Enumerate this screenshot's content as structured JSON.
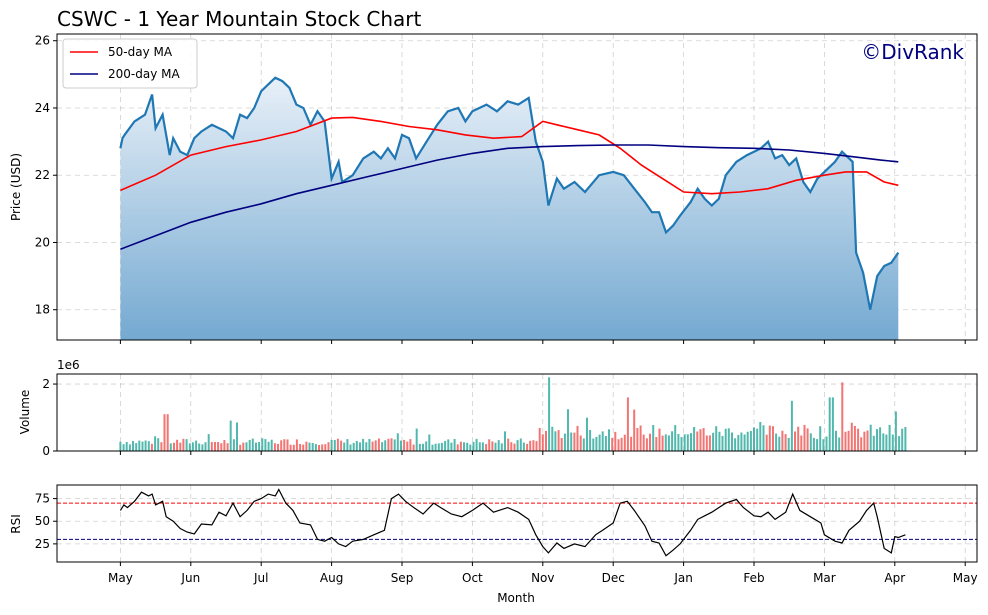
{
  "chart_data": {
    "type": "line",
    "title": "CSWC - 1 Year Mountain Stock Chart",
    "watermark": "©DivRank",
    "xlabel": "Month",
    "x_ticks": [
      "May",
      "Jun",
      "Jul",
      "Aug",
      "Sep",
      "Oct",
      "Nov",
      "Dec",
      "Jan",
      "Feb",
      "Mar",
      "Apr",
      "May"
    ],
    "price_panel": {
      "ylabel": "Price (USD)",
      "ylim": [
        17.1,
        26.2
      ],
      "yticks": [
        "18",
        "20",
        "22",
        "24",
        "26"
      ],
      "grid": true,
      "legend_position": "top-left",
      "legend": [
        "50-day MA",
        "200-day MA"
      ],
      "price": [
        [
          0,
          22.8
        ],
        [
          0.03,
          23.1
        ],
        [
          0.06,
          23.2
        ],
        [
          0.2,
          23.6
        ],
        [
          0.35,
          23.8
        ],
        [
          0.45,
          24.4
        ],
        [
          0.5,
          23.4
        ],
        [
          0.6,
          23.8
        ],
        [
          0.7,
          22.6
        ],
        [
          0.75,
          23.1
        ],
        [
          0.85,
          22.7
        ],
        [
          0.95,
          22.6
        ],
        [
          1.05,
          23.1
        ],
        [
          1.15,
          23.3
        ],
        [
          1.3,
          23.5
        ],
        [
          1.5,
          23.3
        ],
        [
          1.6,
          23.1
        ],
        [
          1.7,
          23.8
        ],
        [
          1.8,
          23.7
        ],
        [
          1.9,
          24.0
        ],
        [
          2.0,
          24.5
        ],
        [
          2.1,
          24.7
        ],
        [
          2.2,
          24.9
        ],
        [
          2.3,
          24.8
        ],
        [
          2.4,
          24.6
        ],
        [
          2.5,
          24.1
        ],
        [
          2.6,
          24.0
        ],
        [
          2.7,
          23.5
        ],
        [
          2.8,
          23.9
        ],
        [
          2.9,
          23.6
        ],
        [
          3.0,
          21.9
        ],
        [
          3.1,
          22.4
        ],
        [
          3.15,
          21.8
        ],
        [
          3.3,
          22.0
        ],
        [
          3.45,
          22.5
        ],
        [
          3.6,
          22.7
        ],
        [
          3.7,
          22.5
        ],
        [
          3.8,
          22.8
        ],
        [
          3.9,
          22.5
        ],
        [
          4.0,
          23.2
        ],
        [
          4.1,
          23.1
        ],
        [
          4.2,
          22.5
        ],
        [
          4.35,
          23.0
        ],
        [
          4.5,
          23.5
        ],
        [
          4.65,
          23.9
        ],
        [
          4.8,
          24.0
        ],
        [
          4.9,
          23.6
        ],
        [
          5.0,
          23.9
        ],
        [
          5.2,
          24.1
        ],
        [
          5.35,
          23.9
        ],
        [
          5.5,
          24.2
        ],
        [
          5.65,
          24.1
        ],
        [
          5.8,
          24.3
        ],
        [
          5.9,
          23.0
        ],
        [
          6.0,
          22.4
        ],
        [
          6.08,
          21.1
        ],
        [
          6.2,
          21.9
        ],
        [
          6.3,
          21.6
        ],
        [
          6.45,
          21.8
        ],
        [
          6.6,
          21.5
        ],
        [
          6.8,
          22.0
        ],
        [
          7.0,
          22.1
        ],
        [
          7.15,
          22.0
        ],
        [
          7.3,
          21.6
        ],
        [
          7.45,
          21.2
        ],
        [
          7.55,
          20.9
        ],
        [
          7.65,
          20.9
        ],
        [
          7.75,
          20.3
        ],
        [
          7.85,
          20.5
        ],
        [
          7.95,
          20.8
        ],
        [
          8.1,
          21.2
        ],
        [
          8.2,
          21.6
        ],
        [
          8.3,
          21.3
        ],
        [
          8.4,
          21.1
        ],
        [
          8.5,
          21.3
        ],
        [
          8.6,
          22.0
        ],
        [
          8.75,
          22.4
        ],
        [
          8.9,
          22.6
        ],
        [
          9.0,
          22.7
        ],
        [
          9.1,
          22.8
        ],
        [
          9.2,
          23.0
        ],
        [
          9.3,
          22.5
        ],
        [
          9.4,
          22.6
        ],
        [
          9.5,
          22.3
        ],
        [
          9.6,
          22.5
        ],
        [
          9.7,
          21.8
        ],
        [
          9.8,
          21.5
        ],
        [
          9.9,
          21.9
        ],
        [
          10.0,
          22.1
        ],
        [
          10.15,
          22.4
        ],
        [
          10.25,
          22.7
        ],
        [
          10.4,
          22.4
        ],
        [
          10.45,
          19.7
        ],
        [
          10.55,
          19.1
        ],
        [
          10.65,
          18.0
        ],
        [
          10.75,
          19.0
        ],
        [
          10.85,
          19.3
        ],
        [
          10.95,
          19.4
        ],
        [
          11.05,
          19.7
        ]
      ],
      "ma50": [
        [
          0,
          21.55
        ],
        [
          0.5,
          22.0
        ],
        [
          1.0,
          22.6
        ],
        [
          1.5,
          22.85
        ],
        [
          2.0,
          23.05
        ],
        [
          2.5,
          23.3
        ],
        [
          3.0,
          23.7
        ],
        [
          3.3,
          23.72
        ],
        [
          3.7,
          23.6
        ],
        [
          4.1,
          23.45
        ],
        [
          4.5,
          23.35
        ],
        [
          4.9,
          23.2
        ],
        [
          5.3,
          23.1
        ],
        [
          5.7,
          23.15
        ],
        [
          6.0,
          23.6
        ],
        [
          6.2,
          23.5
        ],
        [
          6.5,
          23.35
        ],
        [
          6.8,
          23.2
        ],
        [
          7.1,
          22.8
        ],
        [
          7.4,
          22.3
        ],
        [
          7.7,
          21.9
        ],
        [
          8.0,
          21.5
        ],
        [
          8.4,
          21.45
        ],
        [
          8.8,
          21.5
        ],
        [
          9.2,
          21.6
        ],
        [
          9.6,
          21.85
        ],
        [
          10.0,
          22.0
        ],
        [
          10.3,
          22.1
        ],
        [
          10.6,
          22.1
        ],
        [
          10.85,
          21.8
        ],
        [
          11.05,
          21.7
        ]
      ],
      "ma200": [
        [
          0,
          19.8
        ],
        [
          0.5,
          20.2
        ],
        [
          1.0,
          20.6
        ],
        [
          1.5,
          20.9
        ],
        [
          2.0,
          21.15
        ],
        [
          2.5,
          21.45
        ],
        [
          3.0,
          21.7
        ],
        [
          3.5,
          21.95
        ],
        [
          4.0,
          22.2
        ],
        [
          4.5,
          22.45
        ],
        [
          5.0,
          22.65
        ],
        [
          5.5,
          22.8
        ],
        [
          6.0,
          22.85
        ],
        [
          6.5,
          22.88
        ],
        [
          7.0,
          22.9
        ],
        [
          7.5,
          22.9
        ],
        [
          8.0,
          22.85
        ],
        [
          8.5,
          22.82
        ],
        [
          9.0,
          22.8
        ],
        [
          9.5,
          22.75
        ],
        [
          10.0,
          22.65
        ],
        [
          10.4,
          22.55
        ],
        [
          10.8,
          22.45
        ],
        [
          11.05,
          22.4
        ]
      ]
    },
    "volume_panel": {
      "ylabel": "Volume",
      "exponent_label": "1e6",
      "ylim": [
        0,
        2.3
      ],
      "yticks": [
        "0",
        "2"
      ],
      "grid": true
    },
    "rsi_panel": {
      "ylabel": "RSI",
      "ylim": [
        5,
        90
      ],
      "yticks": [
        "25",
        "50",
        "75"
      ],
      "overbought": 70,
      "oversold": 30,
      "grid": true,
      "rsi": [
        [
          0,
          62
        ],
        [
          0.05,
          68
        ],
        [
          0.1,
          65
        ],
        [
          0.2,
          72
        ],
        [
          0.3,
          82
        ],
        [
          0.4,
          78
        ],
        [
          0.45,
          80
        ],
        [
          0.5,
          68
        ],
        [
          0.6,
          72
        ],
        [
          0.65,
          55
        ],
        [
          0.75,
          50
        ],
        [
          0.85,
          42
        ],
        [
          0.95,
          38
        ],
        [
          1.05,
          36
        ],
        [
          1.15,
          47
        ],
        [
          1.3,
          46
        ],
        [
          1.4,
          60
        ],
        [
          1.5,
          56
        ],
        [
          1.6,
          70
        ],
        [
          1.7,
          55
        ],
        [
          1.8,
          62
        ],
        [
          1.9,
          72
        ],
        [
          2.0,
          75
        ],
        [
          2.1,
          80
        ],
        [
          2.2,
          78
        ],
        [
          2.25,
          85
        ],
        [
          2.35,
          70
        ],
        [
          2.45,
          62
        ],
        [
          2.55,
          48
        ],
        [
          2.7,
          46
        ],
        [
          2.8,
          30
        ],
        [
          2.9,
          28
        ],
        [
          3.0,
          32
        ],
        [
          3.1,
          25
        ],
        [
          3.2,
          22
        ],
        [
          3.3,
          28
        ],
        [
          3.45,
          30
        ],
        [
          3.6,
          35
        ],
        [
          3.75,
          40
        ],
        [
          3.85,
          75
        ],
        [
          3.95,
          80
        ],
        [
          4.05,
          72
        ],
        [
          4.15,
          66
        ],
        [
          4.3,
          58
        ],
        [
          4.45,
          70
        ],
        [
          4.55,
          65
        ],
        [
          4.7,
          58
        ],
        [
          4.85,
          55
        ],
        [
          5.0,
          62
        ],
        [
          5.15,
          70
        ],
        [
          5.3,
          60
        ],
        [
          5.5,
          65
        ],
        [
          5.65,
          60
        ],
        [
          5.8,
          52
        ],
        [
          5.9,
          35
        ],
        [
          6.0,
          22
        ],
        [
          6.08,
          15
        ],
        [
          6.2,
          26
        ],
        [
          6.3,
          20
        ],
        [
          6.45,
          25
        ],
        [
          6.6,
          22
        ],
        [
          6.75,
          35
        ],
        [
          6.85,
          40
        ],
        [
          7.0,
          48
        ],
        [
          7.1,
          70
        ],
        [
          7.2,
          72
        ],
        [
          7.3,
          62
        ],
        [
          7.45,
          45
        ],
        [
          7.55,
          28
        ],
        [
          7.65,
          26
        ],
        [
          7.75,
          12
        ],
        [
          7.85,
          18
        ],
        [
          7.95,
          25
        ],
        [
          8.1,
          40
        ],
        [
          8.2,
          52
        ],
        [
          8.3,
          56
        ],
        [
          8.4,
          60
        ],
        [
          8.5,
          65
        ],
        [
          8.6,
          70
        ],
        [
          8.75,
          74
        ],
        [
          8.85,
          65
        ],
        [
          9.0,
          56
        ],
        [
          9.1,
          55
        ],
        [
          9.2,
          60
        ],
        [
          9.3,
          52
        ],
        [
          9.45,
          60
        ],
        [
          9.55,
          80
        ],
        [
          9.65,
          62
        ],
        [
          9.8,
          55
        ],
        [
          9.95,
          48
        ],
        [
          10.0,
          35
        ],
        [
          10.15,
          28
        ],
        [
          10.25,
          26
        ],
        [
          10.35,
          40
        ],
        [
          10.5,
          50
        ],
        [
          10.6,
          62
        ],
        [
          10.7,
          70
        ],
        [
          10.75,
          55
        ],
        [
          10.85,
          20
        ],
        [
          10.95,
          15
        ],
        [
          11.0,
          33
        ],
        [
          11.05,
          32
        ],
        [
          11.15,
          35
        ]
      ]
    }
  }
}
